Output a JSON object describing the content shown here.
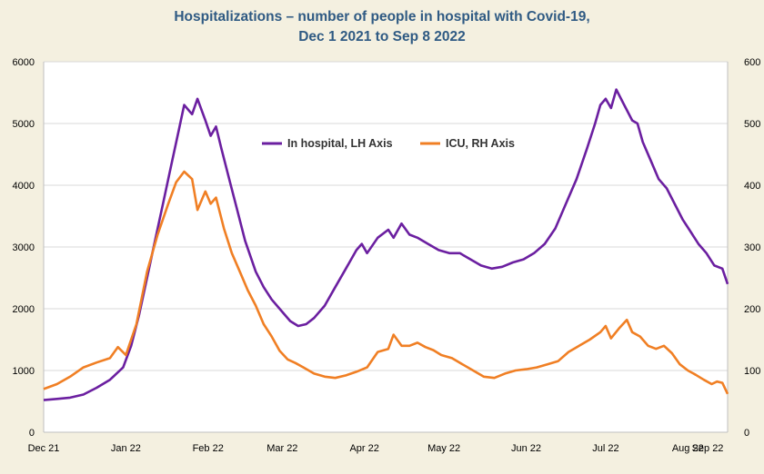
{
  "chart_data": {
    "type": "line",
    "title_line1": "Hospitalizations – number of people in hospital with Covid-19,",
    "title_line2": "Dec 1 2021 to Sep 8  2022",
    "x_tick_labels": [
      "Dec 21",
      "Jan 22",
      "Feb 22",
      "Mar 22",
      "Apr 22",
      "May 22",
      "Jun 22",
      "Jul 22",
      "Aug 22",
      "Sep 22"
    ],
    "left_axis": {
      "ylim": [
        0,
        6000
      ],
      "ticks": [
        0,
        1000,
        2000,
        3000,
        4000,
        5000,
        6000
      ]
    },
    "right_axis": {
      "ylim": [
        0,
        600
      ],
      "ticks": [
        0,
        100,
        200,
        300,
        400,
        500,
        600
      ]
    },
    "grid": true,
    "legend_placement": "top-center",
    "colors": {
      "in_hospital": "#6b1fa0",
      "icu": "#f07f24",
      "background": "#f4f0e0",
      "title": "#2f5a83"
    },
    "series": [
      {
        "name": "In hospital, LH Axis",
        "axis": "left",
        "points": [
          [
            0,
            520
          ],
          [
            5,
            540
          ],
          [
            10,
            560
          ],
          [
            15,
            610
          ],
          [
            20,
            720
          ],
          [
            25,
            850
          ],
          [
            30,
            1050
          ],
          [
            33,
            1400
          ],
          [
            36,
            1900
          ],
          [
            39,
            2500
          ],
          [
            42,
            3100
          ],
          [
            45,
            3700
          ],
          [
            48,
            4300
          ],
          [
            51,
            4900
          ],
          [
            53,
            5300
          ],
          [
            56,
            5150
          ],
          [
            58,
            5400
          ],
          [
            61,
            5050
          ],
          [
            63,
            4800
          ],
          [
            65,
            4950
          ],
          [
            67,
            4600
          ],
          [
            70,
            4100
          ],
          [
            73,
            3600
          ],
          [
            76,
            3100
          ],
          [
            80,
            2600
          ],
          [
            83,
            2350
          ],
          [
            86,
            2150
          ],
          [
            90,
            1950
          ],
          [
            93,
            1800
          ],
          [
            96,
            1720
          ],
          [
            99,
            1750
          ],
          [
            102,
            1850
          ],
          [
            106,
            2050
          ],
          [
            110,
            2350
          ],
          [
            114,
            2650
          ],
          [
            118,
            2950
          ],
          [
            120,
            3050
          ],
          [
            122,
            2900
          ],
          [
            126,
            3150
          ],
          [
            130,
            3280
          ],
          [
            132,
            3150
          ],
          [
            135,
            3380
          ],
          [
            138,
            3200
          ],
          [
            141,
            3150
          ],
          [
            145,
            3050
          ],
          [
            149,
            2950
          ],
          [
            153,
            2900
          ],
          [
            157,
            2900
          ],
          [
            161,
            2800
          ],
          [
            165,
            2700
          ],
          [
            169,
            2650
          ],
          [
            173,
            2680
          ],
          [
            177,
            2750
          ],
          [
            181,
            2800
          ],
          [
            185,
            2900
          ],
          [
            189,
            3050
          ],
          [
            193,
            3300
          ],
          [
            197,
            3700
          ],
          [
            201,
            4100
          ],
          [
            205,
            4600
          ],
          [
            208,
            5000
          ],
          [
            210,
            5300
          ],
          [
            212,
            5400
          ],
          [
            214,
            5250
          ],
          [
            216,
            5550
          ],
          [
            219,
            5300
          ],
          [
            222,
            5050
          ],
          [
            224,
            5000
          ],
          [
            226,
            4700
          ],
          [
            229,
            4400
          ],
          [
            232,
            4100
          ],
          [
            235,
            3950
          ],
          [
            238,
            3700
          ],
          [
            241,
            3450
          ],
          [
            244,
            3250
          ],
          [
            247,
            3050
          ],
          [
            250,
            2900
          ],
          [
            253,
            2700
          ],
          [
            256,
            2650
          ],
          [
            258,
            2400
          ]
        ]
      },
      {
        "name": "ICU, RH Axis",
        "axis": "right",
        "points": [
          [
            0,
            70
          ],
          [
            5,
            78
          ],
          [
            10,
            90
          ],
          [
            15,
            105
          ],
          [
            20,
            113
          ],
          [
            25,
            120
          ],
          [
            28,
            138
          ],
          [
            31,
            125
          ],
          [
            35,
            175
          ],
          [
            39,
            260
          ],
          [
            43,
            320
          ],
          [
            47,
            370
          ],
          [
            50,
            405
          ],
          [
            53,
            422
          ],
          [
            56,
            410
          ],
          [
            58,
            360
          ],
          [
            61,
            390
          ],
          [
            63,
            370
          ],
          [
            65,
            380
          ],
          [
            68,
            330
          ],
          [
            71,
            290
          ],
          [
            74,
            260
          ],
          [
            77,
            230
          ],
          [
            80,
            205
          ],
          [
            83,
            175
          ],
          [
            86,
            155
          ],
          [
            89,
            132
          ],
          [
            92,
            118
          ],
          [
            95,
            112
          ],
          [
            98,
            105
          ],
          [
            102,
            95
          ],
          [
            106,
            90
          ],
          [
            110,
            88
          ],
          [
            114,
            92
          ],
          [
            118,
            98
          ],
          [
            122,
            105
          ],
          [
            126,
            130
          ],
          [
            130,
            135
          ],
          [
            132,
            158
          ],
          [
            135,
            140
          ],
          [
            138,
            140
          ],
          [
            141,
            145
          ],
          [
            144,
            138
          ],
          [
            147,
            133
          ],
          [
            150,
            125
          ],
          [
            154,
            120
          ],
          [
            158,
            110
          ],
          [
            162,
            100
          ],
          [
            166,
            90
          ],
          [
            170,
            88
          ],
          [
            174,
            95
          ],
          [
            178,
            100
          ],
          [
            182,
            102
          ],
          [
            186,
            105
          ],
          [
            190,
            110
          ],
          [
            194,
            115
          ],
          [
            198,
            130
          ],
          [
            202,
            140
          ],
          [
            206,
            150
          ],
          [
            210,
            162
          ],
          [
            212,
            172
          ],
          [
            214,
            152
          ],
          [
            217,
            168
          ],
          [
            220,
            182
          ],
          [
            222,
            162
          ],
          [
            225,
            155
          ],
          [
            228,
            140
          ],
          [
            231,
            135
          ],
          [
            234,
            140
          ],
          [
            237,
            128
          ],
          [
            240,
            110
          ],
          [
            243,
            100
          ],
          [
            246,
            93
          ],
          [
            249,
            85
          ],
          [
            252,
            78
          ],
          [
            254,
            82
          ],
          [
            256,
            80
          ],
          [
            258,
            62
          ]
        ]
      }
    ]
  }
}
